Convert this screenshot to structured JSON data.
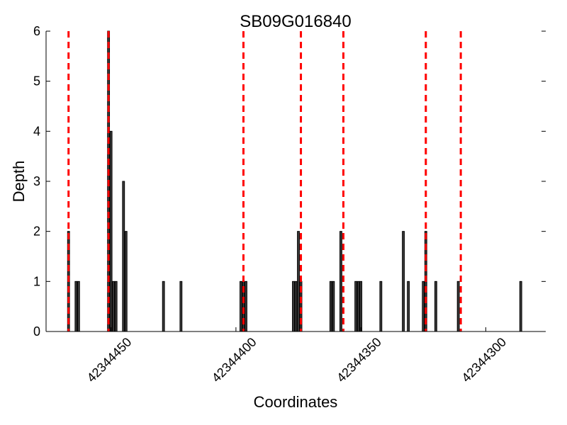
{
  "chart_data": {
    "type": "bar",
    "title": "SB09G016840",
    "xlabel": "Coordinates",
    "ylabel": "Depth",
    "x_reversed": true,
    "xlim": [
      42344476,
      42344276
    ],
    "ylim": [
      0,
      6
    ],
    "x_ticks": [
      42344450,
      42344400,
      42344350,
      42344300
    ],
    "y_ticks": [
      0,
      1,
      2,
      3,
      4,
      5,
      6
    ],
    "grid": false,
    "colors": {
      "bar_fill": "#3d3d3d",
      "bar_edge": "#000000",
      "marker_line": "#ff0000"
    },
    "bars": [
      {
        "x": 42344467,
        "depth": 2
      },
      {
        "x": 42344464,
        "depth": 1
      },
      {
        "x": 42344463,
        "depth": 1
      },
      {
        "x": 42344451,
        "depth": 6
      },
      {
        "x": 42344450,
        "depth": 4
      },
      {
        "x": 42344449,
        "depth": 1
      },
      {
        "x": 42344448,
        "depth": 1
      },
      {
        "x": 42344445,
        "depth": 3
      },
      {
        "x": 42344444,
        "depth": 2
      },
      {
        "x": 42344429,
        "depth": 1
      },
      {
        "x": 42344422,
        "depth": 1
      },
      {
        "x": 42344398,
        "depth": 1
      },
      {
        "x": 42344397,
        "depth": 1
      },
      {
        "x": 42344396,
        "depth": 1
      },
      {
        "x": 42344377,
        "depth": 1
      },
      {
        "x": 42344376,
        "depth": 1
      },
      {
        "x": 42344375,
        "depth": 2
      },
      {
        "x": 42344374,
        "depth": 1
      },
      {
        "x": 42344362,
        "depth": 1
      },
      {
        "x": 42344361,
        "depth": 1
      },
      {
        "x": 42344358,
        "depth": 2
      },
      {
        "x": 42344352,
        "depth": 1
      },
      {
        "x": 42344351,
        "depth": 1
      },
      {
        "x": 42344350,
        "depth": 1
      },
      {
        "x": 42344342,
        "depth": 1
      },
      {
        "x": 42344333,
        "depth": 2
      },
      {
        "x": 42344331,
        "depth": 1
      },
      {
        "x": 42344325,
        "depth": 1
      },
      {
        "x": 42344324,
        "depth": 2
      },
      {
        "x": 42344320,
        "depth": 1
      },
      {
        "x": 42344311,
        "depth": 1
      },
      {
        "x": 42344286,
        "depth": 1
      }
    ],
    "marker_lines_x": [
      42344467,
      42344451,
      42344397,
      42344374,
      42344357,
      42344324,
      42344310
    ]
  }
}
